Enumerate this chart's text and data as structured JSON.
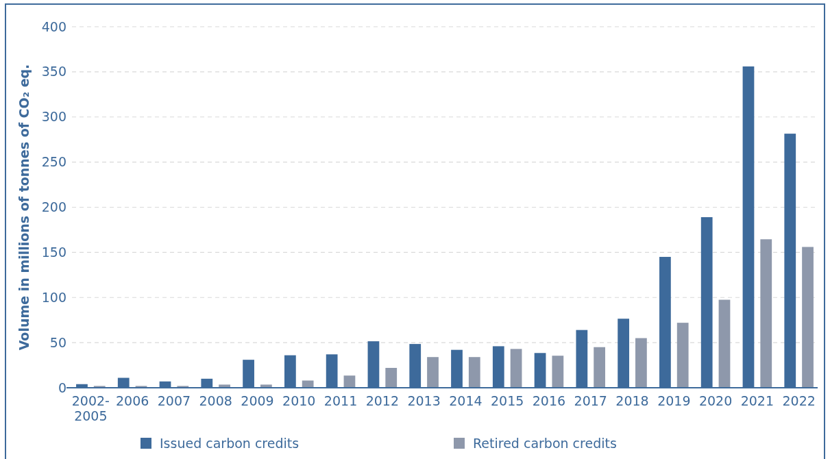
{
  "chart_data": {
    "type": "bar",
    "ylabel": "Volume in millions of tonnes of CO₂ eq.",
    "categories": [
      "2002-2005",
      "2006",
      "2007",
      "2008",
      "2009",
      "2010",
      "2011",
      "2012",
      "2013",
      "2014",
      "2015",
      "2016",
      "2017",
      "2018",
      "2019",
      "2020",
      "2021",
      "2022"
    ],
    "series": [
      {
        "name": "Issued carbon credits",
        "color": "#3d6a9b",
        "values": [
          4,
          11,
          7,
          10,
          31,
          36,
          37,
          51.5,
          48.5,
          42,
          46,
          38.5,
          64,
          76.5,
          145,
          189,
          356,
          281.5
        ]
      },
      {
        "name": "Retired carbon credits",
        "color": "#8e98ab",
        "values": [
          2,
          2,
          2,
          3.5,
          3.5,
          8,
          13.5,
          22,
          34,
          34,
          43,
          35.5,
          45,
          55,
          72,
          97.5,
          164.5,
          156
        ]
      }
    ],
    "ylim": [
      0,
      400
    ],
    "yticks": [
      0,
      50,
      100,
      150,
      200,
      250,
      300,
      350,
      400
    ],
    "grid": "y",
    "legend": "bottom"
  }
}
